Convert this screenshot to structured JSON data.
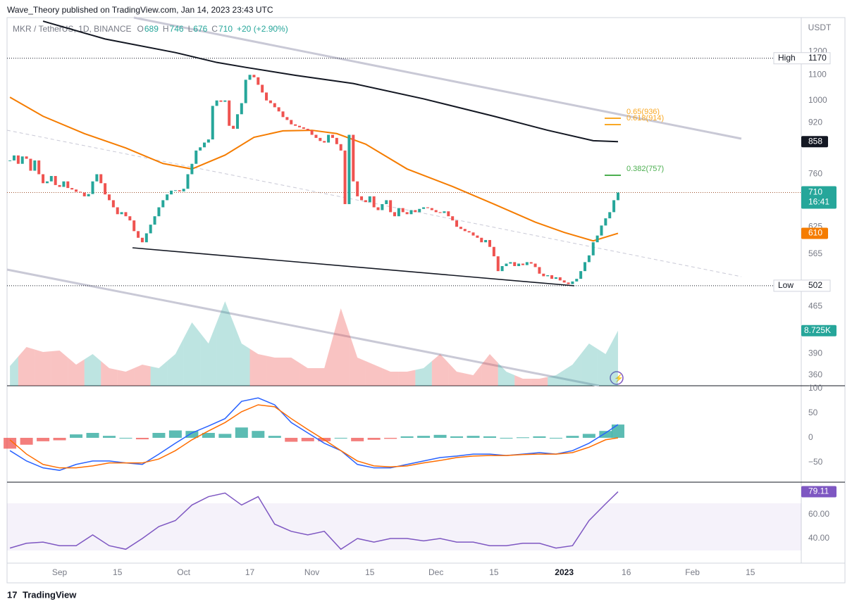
{
  "header": {
    "publisher": "Wave_Theory published on TradingView.com, Jan 14, 2023 23:43 UTC",
    "symbol": "MKR / TetherUS, 1D, BINANCE",
    "ohlc": [
      {
        "key": "O",
        "value": "689"
      },
      {
        "key": "H",
        "value": "746"
      },
      {
        "key": "L",
        "value": "676"
      },
      {
        "key": "C",
        "value": "710"
      }
    ],
    "change": "+20 (+2.90%)"
  },
  "footer": "TradingView",
  "chart_data": [
    {
      "type": "candlestick",
      "y_label": "USDT",
      "log_scale": true,
      "up_color": "#26a69a",
      "down_color": "#ef5350",
      "values": [
        800,
        815,
        790,
        812,
        805,
        770,
        800,
        760,
        735,
        740,
        755,
        730,
        725,
        740,
        722,
        718,
        712,
        710,
        700,
        706,
        740,
        760,
        735,
        705,
        690,
        672,
        655,
        660,
        650,
        640,
        615,
        600,
        590,
        610,
        630,
        650,
        672,
        690,
        705,
        715,
        716,
        713,
        720,
        760,
        790,
        830,
        840,
        855,
        865,
        980,
        1000,
        995,
        1000,
        910,
        900,
        950,
        990,
        1080,
        1100,
        1090,
        1060,
        1030,
        1000,
        990,
        975,
        960,
        940,
        930,
        915,
        910,
        905,
        900,
        895,
        880,
        870,
        860,
        855,
        880,
        870,
        850,
        830,
        680,
        880,
        740,
        700,
        690,
        685,
        700,
        672,
        665,
        680,
        690,
        660,
        650,
        670,
        660,
        655,
        665,
        660,
        668,
        672,
        670,
        665,
        660,
        658,
        662,
        650,
        640,
        625,
        620,
        615,
        612,
        605,
        600,
        590,
        595,
        580,
        560,
        530,
        540,
        545,
        548,
        540,
        545,
        542,
        548,
        545,
        538,
        525,
        520,
        522,
        515,
        518,
        512,
        508,
        505,
        510,
        515,
        530,
        548,
        562,
        590,
        605,
        628,
        645,
        660,
        690,
        710
      ],
      "countdown": "16:41",
      "xlim": [
        -0.7,
        191.3
      ],
      "xticks": [
        {
          "value": 12,
          "label": "Sep"
        },
        {
          "value": 26,
          "label": "15"
        },
        {
          "value": 42,
          "label": "Oct"
        },
        {
          "value": 58,
          "label": "17"
        },
        {
          "value": 73,
          "label": "Nov"
        },
        {
          "value": 87,
          "label": "15"
        },
        {
          "value": 103,
          "label": "Dec"
        },
        {
          "value": 117,
          "label": "15"
        },
        {
          "value": 134,
          "label": "2023"
        },
        {
          "value": 149,
          "label": "16"
        },
        {
          "value": 165,
          "label": "Feb"
        },
        {
          "value": 179,
          "label": "15"
        }
      ],
      "ylim": [
        346,
        1361
      ],
      "yticks": [
        1200,
        1100,
        1000,
        920,
        760,
        625,
        565,
        465,
        390,
        360
      ],
      "high": {
        "label": "High",
        "value": 1170
      },
      "low": {
        "label": "Low",
        "value": 502
      },
      "ma": [
        {
          "color": "#f57c00",
          "x": [
            0,
            8,
            18,
            28,
            37,
            44,
            52,
            59,
            66,
            73,
            79,
            86,
            96,
            107,
            117,
            127,
            134,
            141,
            147
          ],
          "values": [
            1012,
            943,
            884,
            838,
            791,
            775,
            816,
            872,
            893,
            895,
            884,
            850,
            775,
            726,
            680,
            636,
            612,
            593,
            610
          ]
        },
        {
          "color": "#131722",
          "x": [
            8,
            23,
            40,
            50,
            57,
            69,
            83,
            100,
            117,
            130,
            141,
            147
          ],
          "values": [
            1343,
            1257,
            1195,
            1152,
            1131,
            1098,
            1065,
            1006,
            943,
            895,
            861,
            858
          ]
        }
      ],
      "fib": [
        {
          "label": "0.65(936)",
          "value": 936,
          "color": "#f9a825"
        },
        {
          "label": "0.618(914)",
          "value": 914,
          "color": "#f9a825"
        },
        {
          "label": "0.382(757)",
          "value": 757,
          "color": "#4caf50"
        }
      ],
      "volume": {
        "x": [
          0,
          4,
          8,
          12,
          16,
          20,
          24,
          28,
          32,
          36,
          40,
          44,
          48,
          52,
          56,
          60,
          64,
          68,
          72,
          76,
          80,
          84,
          88,
          92,
          96,
          100,
          104,
          108,
          112,
          116,
          120,
          124,
          128,
          132,
          136,
          140,
          144,
          147
        ],
        "values": [
          3120,
          6130,
          5350,
          5580,
          3350,
          5020,
          2790,
          2230,
          3350,
          2790,
          5020,
          10040,
          6690,
          13380,
          6690,
          5020,
          4460,
          4460,
          2790,
          2790,
          12270,
          4460,
          3350,
          2230,
          2230,
          2790,
          5020,
          2230,
          1670,
          5020,
          2230,
          1120,
          1120,
          1670,
          3350,
          6690,
          5020,
          8725
        ],
        "last_value_label": "8.725K",
        "ylim": [
          0,
          14500
        ]
      }
    },
    {
      "type": "macd",
      "x": [
        0,
        4,
        8,
        12,
        16,
        20,
        24,
        28,
        32,
        36,
        40,
        44,
        48,
        52,
        56,
        60,
        64,
        68,
        72,
        76,
        80,
        84,
        88,
        92,
        96,
        100,
        104,
        108,
        112,
        116,
        120,
        124,
        128,
        132,
        136,
        140,
        144,
        147
      ],
      "histogram": [
        -22,
        -14,
        -7,
        -5,
        7,
        10,
        4,
        0,
        -3,
        10,
        15,
        14,
        10,
        8,
        21,
        14,
        4,
        -8,
        -7,
        -7,
        0,
        -7,
        -4,
        -2,
        3,
        4,
        6,
        3,
        4,
        3,
        0,
        1,
        3,
        0,
        4,
        8,
        14,
        27
      ],
      "series": [
        {
          "color": "#2962ff",
          "values": [
            -26,
            -47,
            -61,
            -66,
            -54,
            -47,
            -47,
            -51,
            -54,
            -33,
            -11,
            10,
            24,
            39,
            74,
            81,
            67,
            31,
            10,
            -11,
            -26,
            -54,
            -61,
            -61,
            -54,
            -47,
            -40,
            -37,
            -33,
            -33,
            -36,
            -33,
            -30,
            -33,
            -26,
            -11,
            10,
            27
          ]
        },
        {
          "color": "#ff6d00",
          "values": [
            -4,
            -33,
            -54,
            -61,
            -61,
            -57,
            -51,
            -51,
            -51,
            -43,
            -26,
            -4,
            14,
            31,
            53,
            67,
            63,
            39,
            17,
            -4,
            -26,
            -47,
            -57,
            -59,
            -57,
            -51,
            -46,
            -40,
            -37,
            -36,
            -36,
            -34,
            -33,
            -33,
            -30,
            -19,
            -4,
            0
          ]
        }
      ],
      "ylim": [
        -82.9,
        100
      ],
      "yticks": [
        100,
        50,
        0,
        {
          "value": -50,
          "label": "−50"
        }
      ]
    },
    {
      "type": "line",
      "x": [
        0,
        4,
        8,
        12,
        16,
        20,
        24,
        28,
        32,
        36,
        40,
        44,
        48,
        52,
        56,
        60,
        64,
        68,
        72,
        76,
        80,
        84,
        88,
        92,
        96,
        100,
        104,
        108,
        112,
        116,
        120,
        124,
        128,
        132,
        136,
        140,
        144,
        147
      ],
      "series": [
        {
          "color": "#7e57c2",
          "values": [
            32,
            36,
            37,
            34,
            34,
            43,
            34,
            31,
            40,
            50,
            55,
            68,
            75,
            78,
            68,
            75,
            52,
            46,
            43,
            46,
            31,
            40,
            37,
            40,
            40,
            38,
            40,
            37,
            37,
            34,
            34,
            36,
            36,
            32,
            34,
            55,
            69,
            79.11
          ]
        }
      ],
      "ylim": [
        19.4,
        86.5
      ],
      "yticks": [
        {
          "value": 60,
          "label": "60.00"
        },
        {
          "value": 40,
          "label": "40.00"
        }
      ]
    }
  ]
}
